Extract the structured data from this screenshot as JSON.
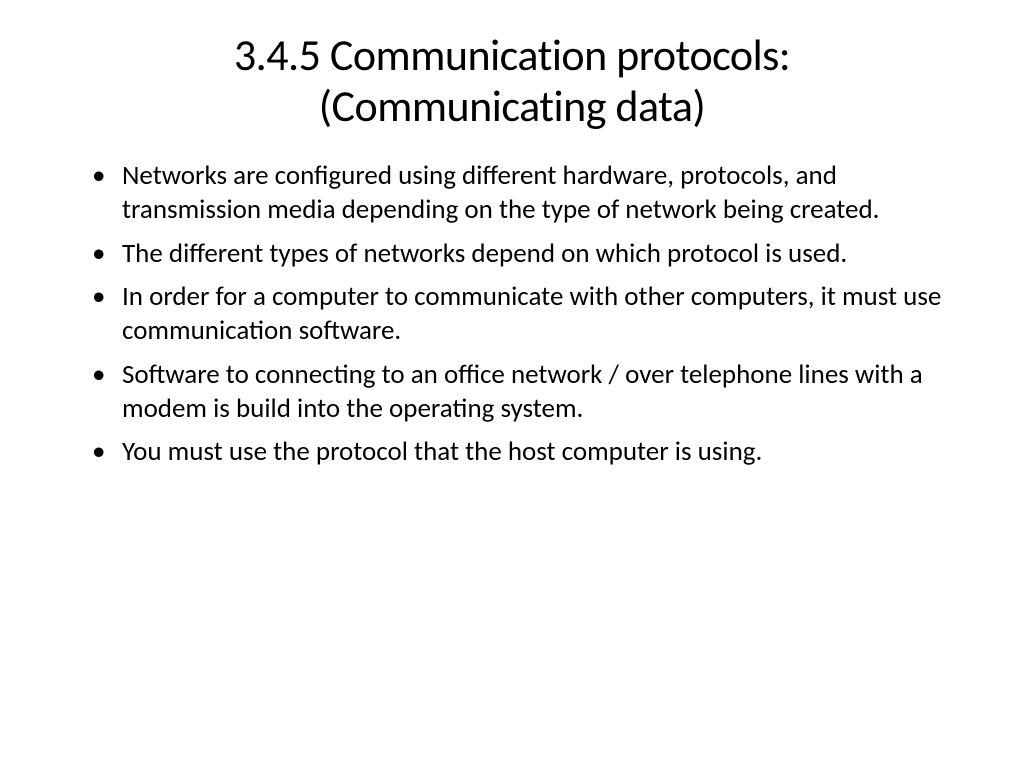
{
  "slide": {
    "title_line1": "3.4.5 Communication protocols:",
    "title_line2": "(Communicating data)",
    "bullets": [
      "Networks are configured using different  hardware, protocols, and transmission media depending on the type of network being created.",
      "The different types of networks depend on which protocol is used.",
      "In order for a computer to communicate with other computers, it must use communication software.",
      "Software to connecting to an office network / over telephone lines with a modem is build into the operating system.",
      "You must use the protocol that the host computer is using."
    ]
  },
  "styling": {
    "background_color": "#ffffff",
    "text_color": "#000000",
    "title_fontsize": 44,
    "body_fontsize": 27,
    "font_family": "Calibri"
  }
}
